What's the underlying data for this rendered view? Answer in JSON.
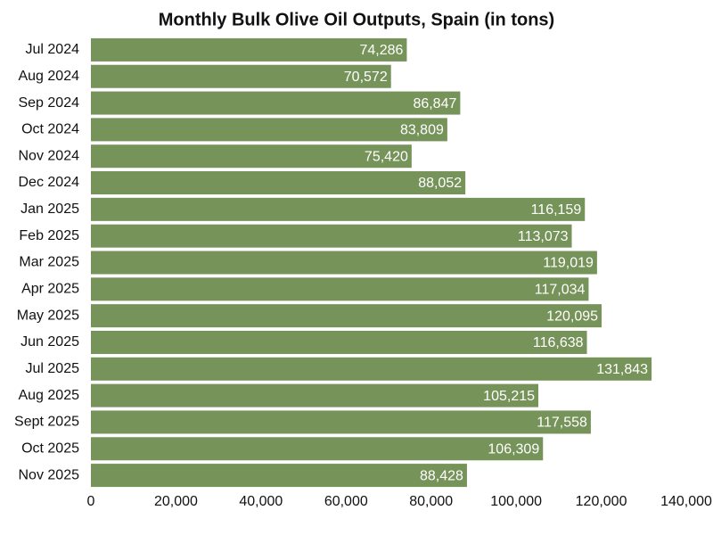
{
  "chart_data": {
    "type": "barh",
    "title": "Monthly Bulk Olive Oil Outputs, Spain (in tons)",
    "categories": [
      "Jul 2024",
      "Aug 2024",
      "Sep 2024",
      "Oct 2024",
      "Nov 2024",
      "Dec 2024",
      "Jan 2025",
      "Feb 2025",
      "Mar 2025",
      "Apr 2025",
      "May 2025",
      "Jun 2025",
      "Jul 2025",
      "Aug 2025",
      "Sept 2025",
      "Oct 2025",
      "Nov 2025"
    ],
    "values": [
      74286,
      70572,
      86847,
      83809,
      75420,
      88052,
      116159,
      113073,
      119019,
      117034,
      120095,
      116638,
      131843,
      105215,
      117558,
      106309,
      88428
    ],
    "value_labels": [
      "74,286",
      "70,572",
      "86,847",
      "83,809",
      "75,420",
      "88,052",
      "116,159",
      "113,073",
      "119,019",
      "117,034",
      "120,095",
      "116,638",
      "131,843",
      "105,215",
      "117,558",
      "106,309",
      "88,428"
    ],
    "color": "#76935a",
    "xlim": [
      0,
      140000
    ],
    "xticks": [
      0,
      {
        "value": 20000,
        "label": "20,000"
      },
      {
        "value": 40000,
        "label": "40,000"
      },
      {
        "value": 60000,
        "label": "60,000"
      },
      {
        "value": 80000,
        "label": "80,000"
      },
      {
        "value": 100000,
        "label": "100,000"
      },
      {
        "value": 120000,
        "label": "120,000"
      },
      {
        "value": 140000,
        "label": "140,000"
      }
    ],
    "grid": false
  }
}
